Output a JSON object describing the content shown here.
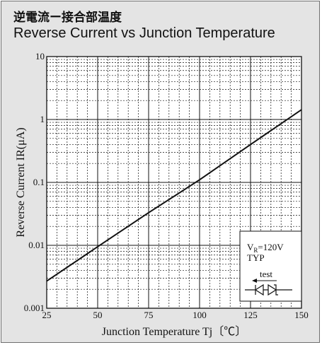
{
  "title_jp": "逆電流ー接合部温度",
  "title_en": "Reverse Current vs Junction Temperature",
  "chart_data": {
    "type": "line",
    "xlabel": "Junction Temperature Tj〔℃〕",
    "ylabel": "Reverse Current IR(μA)",
    "xlim": [
      25,
      150
    ],
    "ylim": [
      0.001,
      10
    ],
    "yscale": "log",
    "grid": true,
    "x_ticks": [
      25,
      50,
      75,
      100,
      125,
      150
    ],
    "x_tick_labels": [
      "25",
      "50",
      "75",
      "100",
      "125",
      "150"
    ],
    "y_ticks": [
      0.001,
      0.01,
      0.1,
      1,
      10
    ],
    "y_tick_labels": [
      "0.001",
      "0.01",
      "0.1",
      "1",
      "10"
    ],
    "series": [
      {
        "x": [
          25,
          50,
          75,
          100,
          125,
          150
        ],
        "y": [
          0.0027,
          0.0095,
          0.033,
          0.11,
          0.4,
          1.43
        ]
      }
    ],
    "legend": {
      "vr_symbol": "V",
      "vr_subscript": "R",
      "vr_value": "=120V",
      "typ": "TYP",
      "test": "test"
    }
  }
}
